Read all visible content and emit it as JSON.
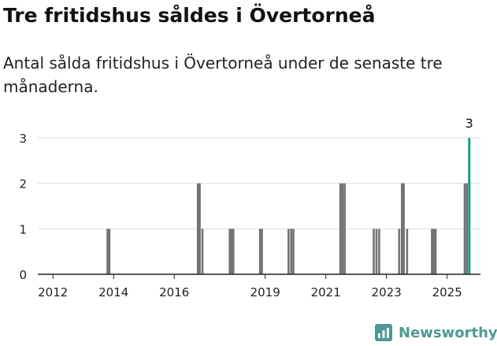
{
  "header": {
    "title": "Tre fritidshus såldes i Övertorneå",
    "subtitle": "Antal sålda fritidshus i Övertorneå under de senaste tre månaderna."
  },
  "brand": {
    "name": "Newsworthy"
  },
  "colors": {
    "bar": "#737373",
    "highlight": "#1a9a8c",
    "grid": "#dddddd",
    "axis": "#222222",
    "brand": "#4b9a93"
  },
  "chart_data": {
    "type": "bar",
    "title": "Tre fritidshus såldes i Övertorneå",
    "subtitle": "Antal sålda fritidshus i Övertorneå under de senaste tre månaderna.",
    "xlabel": "",
    "ylabel": "",
    "x_range": [
      2011.5,
      2026.1
    ],
    "ylim": [
      0,
      3
    ],
    "yticks": [
      0,
      1,
      2,
      3
    ],
    "xticks": [
      {
        "value": 2012,
        "label": "2012"
      },
      {
        "value": 2014,
        "label": "2014"
      },
      {
        "value": 2016,
        "label": "2016"
      },
      {
        "value": 2019,
        "label": "2019"
      },
      {
        "value": 2021,
        "label": "2021"
      },
      {
        "value": 2023,
        "label": "2023"
      },
      {
        "value": 2025,
        "label": "2025"
      }
    ],
    "grid": true,
    "bar_width": 0.083,
    "series": [
      {
        "values": [
          {
            "x": 2013.8,
            "y": 1
          },
          {
            "x": 2013.86,
            "y": 1
          },
          {
            "x": 2016.78,
            "y": 2
          },
          {
            "x": 2016.84,
            "y": 2
          },
          {
            "x": 2016.93,
            "y": 1
          },
          {
            "x": 2017.83,
            "y": 1
          },
          {
            "x": 2017.89,
            "y": 1
          },
          {
            "x": 2017.95,
            "y": 1
          },
          {
            "x": 2018.83,
            "y": 1
          },
          {
            "x": 2018.89,
            "y": 1
          },
          {
            "x": 2019.77,
            "y": 1
          },
          {
            "x": 2019.86,
            "y": 1
          },
          {
            "x": 2019.93,
            "y": 1
          },
          {
            "x": 2021.48,
            "y": 2
          },
          {
            "x": 2021.55,
            "y": 2
          },
          {
            "x": 2021.62,
            "y": 2
          },
          {
            "x": 2022.58,
            "y": 1
          },
          {
            "x": 2022.67,
            "y": 1
          },
          {
            "x": 2022.76,
            "y": 1
          },
          {
            "x": 2023.42,
            "y": 1
          },
          {
            "x": 2023.51,
            "y": 2
          },
          {
            "x": 2023.57,
            "y": 2
          },
          {
            "x": 2023.68,
            "y": 1
          },
          {
            "x": 2024.5,
            "y": 1
          },
          {
            "x": 2024.56,
            "y": 1
          },
          {
            "x": 2024.62,
            "y": 1
          },
          {
            "x": 2025.58,
            "y": 2
          },
          {
            "x": 2025.65,
            "y": 2
          }
        ]
      }
    ],
    "highlight": {
      "x": 2025.73,
      "y": 3,
      "label": "3"
    }
  }
}
